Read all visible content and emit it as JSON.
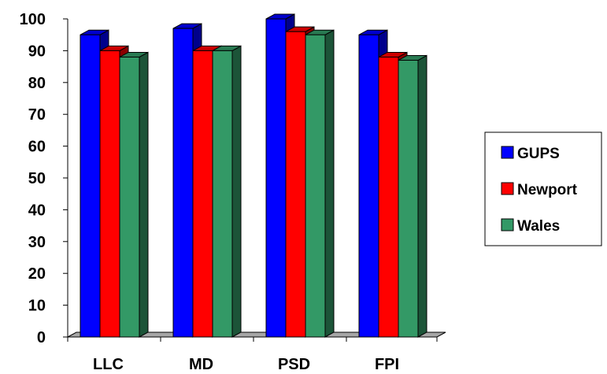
{
  "chart_data": {
    "type": "bar",
    "categories": [
      "LLC",
      "MD",
      "PSD",
      "FPI"
    ],
    "series": [
      {
        "name": "GUPS",
        "values": [
          95,
          97,
          100,
          95
        ],
        "color": "#0000ff"
      },
      {
        "name": "Newport",
        "values": [
          90,
          90,
          96,
          88
        ],
        "color": "#ff0000"
      },
      {
        "name": "Wales",
        "values": [
          88,
          90,
          95,
          87
        ],
        "color": "#339966"
      }
    ],
    "yticks": [
      "0",
      "10",
      "20",
      "30",
      "40",
      "50",
      "60",
      "70",
      "80",
      "90",
      "100"
    ],
    "ylim": [
      0,
      100
    ],
    "title": "",
    "xlabel": "",
    "ylabel": "",
    "grid": false,
    "legend_position": "right",
    "style": "3d-clustered-bar"
  }
}
